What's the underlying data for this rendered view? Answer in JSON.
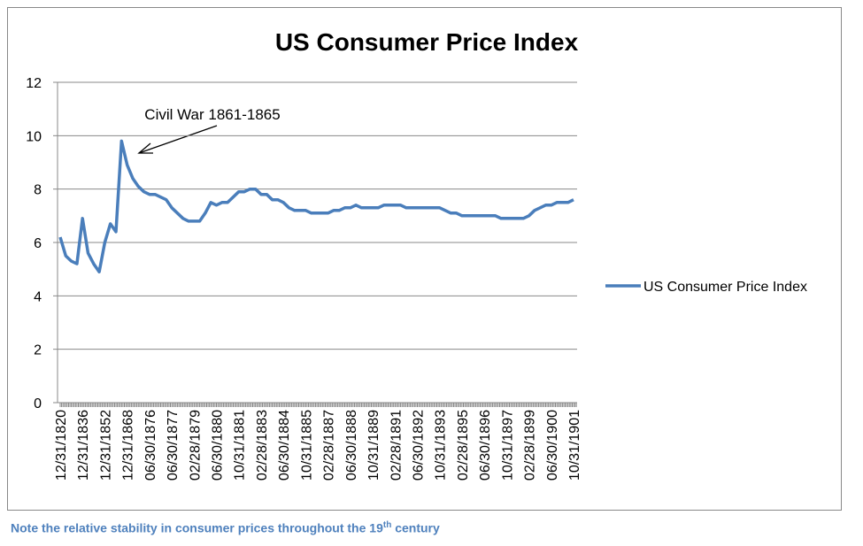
{
  "chart_data": {
    "type": "line",
    "title": "US Consumer Price Index",
    "categories": [
      "12/31/1820",
      null,
      null,
      null,
      "12/31/1836",
      null,
      null,
      null,
      "12/31/1852",
      null,
      null,
      null,
      "12/31/1868",
      null,
      null,
      null,
      "06/30/1876",
      null,
      null,
      null,
      "06/30/1877",
      null,
      null,
      null,
      "02/28/1879",
      null,
      null,
      null,
      "06/30/1880",
      null,
      null,
      null,
      "10/31/1881",
      null,
      null,
      null,
      "02/28/1883",
      null,
      null,
      null,
      "06/30/1884",
      null,
      null,
      null,
      "10/31/1885",
      null,
      null,
      null,
      "02/28/1887",
      null,
      null,
      null,
      "06/30/1888",
      null,
      null,
      null,
      "10/31/1889",
      null,
      null,
      null,
      "02/28/1891",
      null,
      null,
      null,
      "06/30/1892",
      null,
      null,
      null,
      "10/31/1893",
      null,
      null,
      null,
      "02/28/1895",
      null,
      null,
      null,
      "06/30/1896",
      null,
      null,
      null,
      "10/31/1897",
      null,
      null,
      null,
      "02/28/1899",
      null,
      null,
      null,
      "06/30/1900",
      null,
      null,
      null,
      "10/31/1901"
    ],
    "series": [
      {
        "name": "US Consumer Price Index",
        "color": "#4a7ebb",
        "values": [
          6.2,
          5.5,
          5.3,
          5.2,
          6.9,
          5.6,
          5.2,
          4.9,
          6.0,
          6.7,
          6.4,
          9.8,
          8.9,
          8.4,
          8.1,
          7.9,
          7.8,
          7.8,
          7.7,
          7.6,
          7.3,
          7.1,
          6.9,
          6.8,
          6.8,
          6.8,
          7.1,
          7.5,
          7.4,
          7.5,
          7.5,
          7.7,
          7.9,
          7.9,
          8.0,
          8.0,
          7.8,
          7.8,
          7.6,
          7.6,
          7.5,
          7.3,
          7.2,
          7.2,
          7.2,
          7.1,
          7.1,
          7.1,
          7.1,
          7.2,
          7.2,
          7.3,
          7.3,
          7.4,
          7.3,
          7.3,
          7.3,
          7.3,
          7.4,
          7.4,
          7.4,
          7.4,
          7.3,
          7.3,
          7.3,
          7.3,
          7.3,
          7.3,
          7.3,
          7.2,
          7.1,
          7.1,
          7.0,
          7.0,
          7.0,
          7.0,
          7.0,
          7.0,
          7.0,
          6.9,
          6.9,
          6.9,
          6.9,
          6.9,
          7.0,
          7.2,
          7.3,
          7.4,
          7.4,
          7.5,
          7.5,
          7.5,
          7.6
        ]
      }
    ],
    "ylim": [
      0,
      12
    ],
    "yticks": [
      0,
      2,
      4,
      6,
      8,
      10,
      12
    ],
    "grid": true,
    "legend": "right",
    "annotation": "Civil War 1861-1865"
  },
  "note": [
    "Note the relative stability in consumer prices throughout the 19",
    "th",
    " century"
  ]
}
